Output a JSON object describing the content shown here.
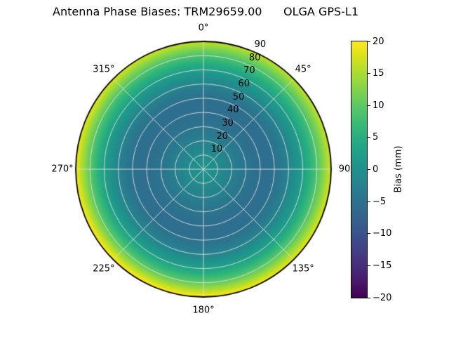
{
  "title": "Antenna Phase Biases: TRM29659.00      OLGA GPS-L1",
  "polar": {
    "azimuth_labels": [
      {
        "label": "0°",
        "angle": 0
      },
      {
        "label": "45°",
        "angle": 45
      },
      {
        "label": "90",
        "angle": 90
      },
      {
        "label": "135°",
        "angle": 135
      },
      {
        "label": "180°",
        "angle": 180
      },
      {
        "label": "225°",
        "angle": 225
      },
      {
        "label": "270°",
        "angle": 270
      },
      {
        "label": "315°",
        "angle": 315
      }
    ],
    "radial_labels": [
      {
        "label": "10",
        "r": 10
      },
      {
        "label": "20",
        "r": 20
      },
      {
        "label": "30",
        "r": 30
      },
      {
        "label": "40",
        "r": 40
      },
      {
        "label": "50",
        "r": 50
      },
      {
        "label": "60",
        "r": 60
      },
      {
        "label": "70",
        "r": 70
      },
      {
        "label": "80",
        "r": 80
      },
      {
        "label": "90",
        "r": 90
      }
    ],
    "radial_label_angle_deg": 22.5,
    "grid_ring_step_deg": 10,
    "grid_spoke_step_deg": 45,
    "grid_color": "#dedede",
    "outline_color": "#000000"
  },
  "colorbar": {
    "label": "Bias (mm)",
    "ticks": [
      "20",
      "15",
      "10",
      "5",
      "0",
      "−5",
      "−10",
      "−15",
      "−20"
    ],
    "vmin": -20,
    "vmax": 20
  },
  "colormap": {
    "name": "viridis",
    "stops": [
      "#440154",
      "#481567",
      "#482677",
      "#453781",
      "#404788",
      "#39568C",
      "#33638D",
      "#2D708E",
      "#287D8E",
      "#238A8D",
      "#1F968B",
      "#20A387",
      "#29AF7F",
      "#3CBB75",
      "#55C667",
      "#73D055",
      "#95D840",
      "#B8DE29",
      "#DCE319",
      "#FDE725"
    ]
  },
  "chart_data": {
    "type": "heatmap",
    "projection": "polar",
    "title": "Antenna Phase Biases: TRM29659.00      OLGA GPS-L1",
    "antenna": "TRM29659.00",
    "dataset": "OLGA GPS-L1",
    "quantity": "Bias (mm)",
    "colormap": "viridis",
    "vmin": -20,
    "vmax": 20,
    "azimuth_ticks_deg": [
      0,
      45,
      90,
      135,
      180,
      225,
      270,
      315
    ],
    "zenith_rings_deg": [
      10,
      20,
      30,
      40,
      50,
      60,
      70,
      80,
      90
    ],
    "radial_profile_mm": [
      [
        0,
        0.6
      ],
      [
        5,
        0.2
      ],
      [
        10,
        -0.6
      ],
      [
        15,
        -1.6
      ],
      [
        20,
        -2.6
      ],
      [
        25,
        -3.6
      ],
      [
        30,
        -4.5
      ],
      [
        35,
        -5.2
      ],
      [
        40,
        -5.6
      ],
      [
        45,
        -5.6
      ],
      [
        50,
        -5.0
      ],
      [
        55,
        -3.8
      ],
      [
        60,
        -2.0
      ],
      [
        65,
        0.2
      ],
      [
        70,
        2.8
      ],
      [
        75,
        5.8
      ],
      [
        80,
        9.5
      ],
      [
        85,
        13.8
      ],
      [
        90,
        18.5
      ]
    ],
    "azimuthal_variation": {
      "amplitude_mm": 2.2,
      "peak_azimuth_deg": 210,
      "inner_zenith_deg": 60
    },
    "notes": "Bias is nearly azimuth-symmetric: ~+0.5 mm at zenith, minimum ~-5.6 mm near 40-45 deg zenith angle, rising to ~+18.5 mm (yellow) at the horizon rim; rim slightly brighter toward azimuth ~210 deg."
  }
}
